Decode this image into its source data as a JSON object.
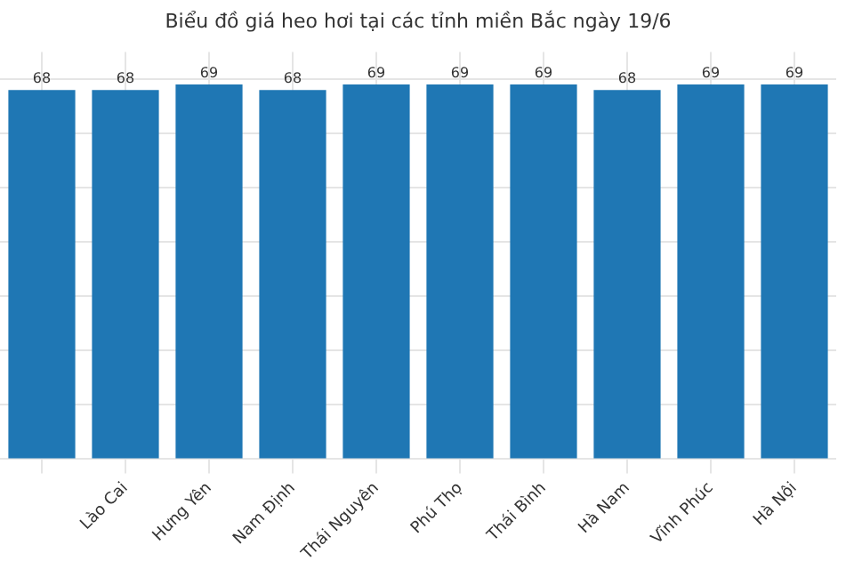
{
  "chart_data": {
    "type": "bar",
    "title": "Biểu đồ giá heo hơi tại các tỉnh miền Bắc ngày 19/6",
    "categories": [
      null,
      "Lào Cai",
      "Hưng Yên",
      "Nam Định",
      "Thái Nguyên",
      "Phú Thọ",
      "Thái Bình",
      "Hà Nam",
      "Vĩnh Phúc",
      "Hà Nội"
    ],
    "values": [
      68,
      68,
      69,
      68,
      69,
      69,
      69,
      68,
      69,
      69
    ],
    "color": "#1f77b4",
    "ylim": [
      0,
      75
    ],
    "yticks": [
      {
        "value": 0,
        "label": null
      },
      {
        "value": 10,
        "label": null
      },
      {
        "value": 20,
        "label": null
      },
      {
        "value": 30,
        "label": null
      },
      {
        "value": 40,
        "label": null
      },
      {
        "value": 50,
        "label": null
      },
      {
        "value": 60,
        "label": null
      },
      {
        "value": 70,
        "label": null
      }
    ],
    "tick_labels": "x",
    "grid": true,
    "data_labels": true
  }
}
